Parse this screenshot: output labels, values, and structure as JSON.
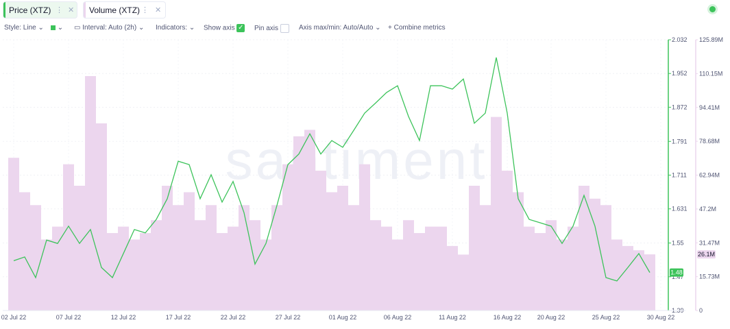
{
  "tabs": [
    "Price (XTZ)",
    "Volume (XTZ)"
  ],
  "toolbar": {
    "style": "Style: Line",
    "interval": "Interval: Auto (2h)",
    "indicators": "Indicators:",
    "show_axis": "Show axis",
    "pin_axis": "Pin axis",
    "axis_minmax": "Axis max/min: Auto/Auto",
    "combine": "Combine metrics"
  },
  "chart_data": {
    "type": "line",
    "watermark": "santiment",
    "categories": [
      "02 Jul 22",
      null,
      null,
      null,
      null,
      "07 Jul 22",
      null,
      null,
      null,
      null,
      "12 Jul 22",
      null,
      null,
      null,
      null,
      "17 Jul 22",
      null,
      null,
      null,
      null,
      "22 Jul 22",
      null,
      null,
      null,
      null,
      "27 Jul 22",
      null,
      null,
      null,
      null,
      "01 Aug 22",
      null,
      null,
      null,
      null,
      "06 Aug 22",
      null,
      null,
      null,
      null,
      "11 Aug 22",
      null,
      null,
      null,
      null,
      "16 Aug 22",
      null,
      null,
      null,
      "20 Aug 22",
      null,
      null,
      null,
      null,
      "25 Aug 22",
      null,
      null,
      null,
      null,
      "30 Aug 22"
    ],
    "series": [
      {
        "name": "Price (XTZ)",
        "color": "#3cc35a",
        "axis": "y",
        "last_value_label": "1.48",
        "values": [
          1.508,
          1.517,
          1.468,
          1.557,
          1.549,
          1.59,
          1.549,
          1.582,
          1.492,
          1.468,
          1.525,
          1.582,
          1.574,
          1.606,
          1.655,
          1.744,
          1.736,
          1.655,
          1.712,
          1.647,
          1.696,
          1.622,
          1.5,
          1.549,
          1.639,
          1.736,
          1.761,
          1.809,
          1.761,
          1.793,
          1.777,
          1.817,
          1.858,
          1.882,
          1.907,
          1.923,
          1.85,
          1.793,
          1.923,
          1.923,
          1.915,
          1.939,
          1.834,
          1.858,
          1.99,
          1.858,
          1.655,
          1.606,
          1.598,
          1.59,
          1.549,
          1.59,
          1.663,
          1.59,
          1.468,
          1.46,
          1.492,
          1.525,
          1.48,
          null
        ]
      },
      {
        "name": "Volume (XTZ)",
        "color": "#ecd6ee",
        "axis": "y2",
        "last_value_label": "26.1M",
        "values": [
          71000000,
          55000000,
          49000000,
          33000000,
          39000000,
          68000000,
          58000000,
          109000000,
          87000000,
          36000000,
          39000000,
          33000000,
          36000000,
          42000000,
          58000000,
          49000000,
          55000000,
          42000000,
          49000000,
          36000000,
          39000000,
          49000000,
          42000000,
          33000000,
          49000000,
          68000000,
          81000000,
          84000000,
          65000000,
          55000000,
          58000000,
          49000000,
          68000000,
          42000000,
          39000000,
          33000000,
          42000000,
          36000000,
          39000000,
          39000000,
          30000000,
          26000000,
          58000000,
          49000000,
          90000000,
          65000000,
          55000000,
          39000000,
          36000000,
          42000000,
          33000000,
          39000000,
          58000000,
          52000000,
          49000000,
          33000000,
          30000000,
          28000000,
          26100000,
          null
        ]
      }
    ],
    "ylim": [
      1.39,
      2.032
    ],
    "yticks": [
      1.39,
      1.47,
      1.55,
      1.631,
      1.711,
      1.791,
      1.872,
      1.952,
      2.032
    ],
    "y2lim": [
      0,
      125890000
    ],
    "y2ticks": [
      0,
      {
        "value": 15730000,
        "label": "15.73M"
      },
      {
        "value": 31470000,
        "label": "31.47M"
      },
      {
        "value": 47200000,
        "label": "47.2M"
      },
      {
        "value": 62940000,
        "label": "62.94M"
      },
      {
        "value": 78680000,
        "label": "78.68M"
      },
      {
        "value": 94410000,
        "label": "94.41M"
      },
      {
        "value": 110150000,
        "label": "110.15M"
      },
      {
        "value": 125890000,
        "label": "125.89M"
      }
    ],
    "grid": true
  }
}
